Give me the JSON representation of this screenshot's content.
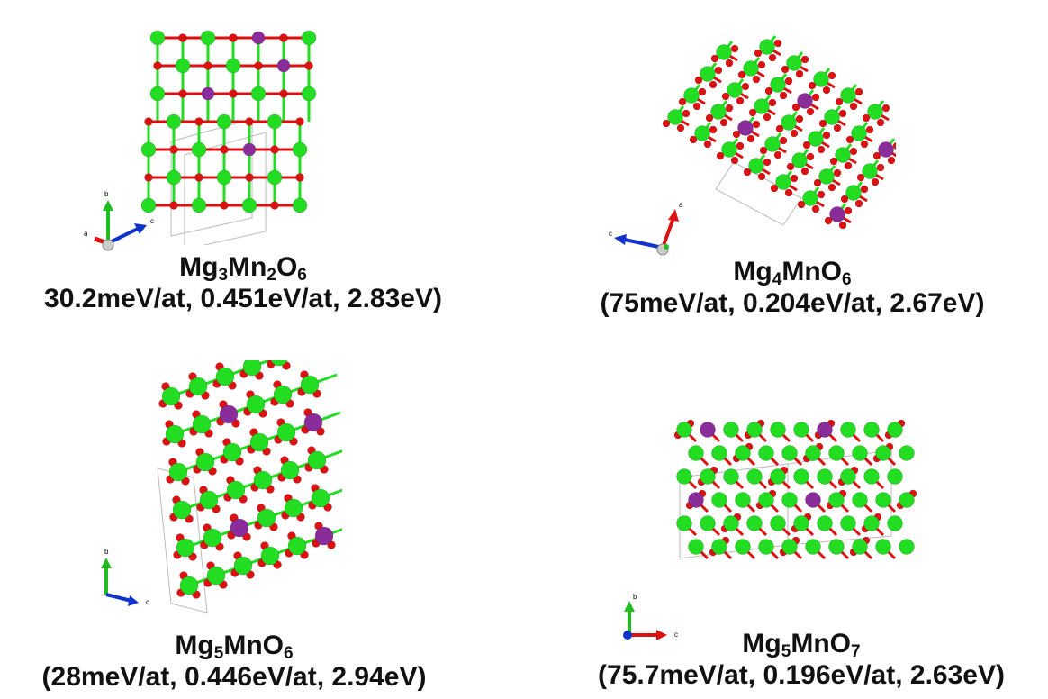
{
  "panels": [
    {
      "formula": [
        {
          "t": "Mg"
        },
        {
          "s": "3"
        },
        {
          "t": "Mn"
        },
        {
          "s": "2"
        },
        {
          "t": "O"
        },
        {
          "s": "6"
        }
      ],
      "properties": "30.2meV/at, 0.451eV/at, 2.83eV)",
      "axes": {
        "labels": [
          "a",
          "b",
          "c"
        ]
      }
    },
    {
      "formula": [
        {
          "t": "Mg"
        },
        {
          "s": "4"
        },
        {
          "t": "MnO"
        },
        {
          "s": "6"
        }
      ],
      "properties": "(75meV/at, 0.204eV/at, 2.67eV)",
      "axes": {
        "labels": [
          "a",
          "c"
        ]
      }
    },
    {
      "formula": [
        {
          "t": "Mg"
        },
        {
          "s": "5"
        },
        {
          "t": "MnO"
        },
        {
          "s": "6"
        }
      ],
      "properties": "(28meV/at, 0.446eV/at, 2.94eV)",
      "axes": {
        "labels": [
          "b",
          "c"
        ]
      }
    },
    {
      "formula": [
        {
          "t": "Mg"
        },
        {
          "s": "5"
        },
        {
          "t": "MnO"
        },
        {
          "s": "7"
        }
      ],
      "properties": "(75.7meV/at, 0.196eV/at, 2.63eV)",
      "axes": {
        "labels": [
          "b",
          "c"
        ]
      }
    }
  ],
  "colors": {
    "magnesium": "#22dd22",
    "manganese": "#8a2d9a",
    "oxygen": "#dd1111",
    "axis_a": "#dd1111",
    "axis_b": "#22bb22",
    "axis_c": "#1133cc"
  }
}
